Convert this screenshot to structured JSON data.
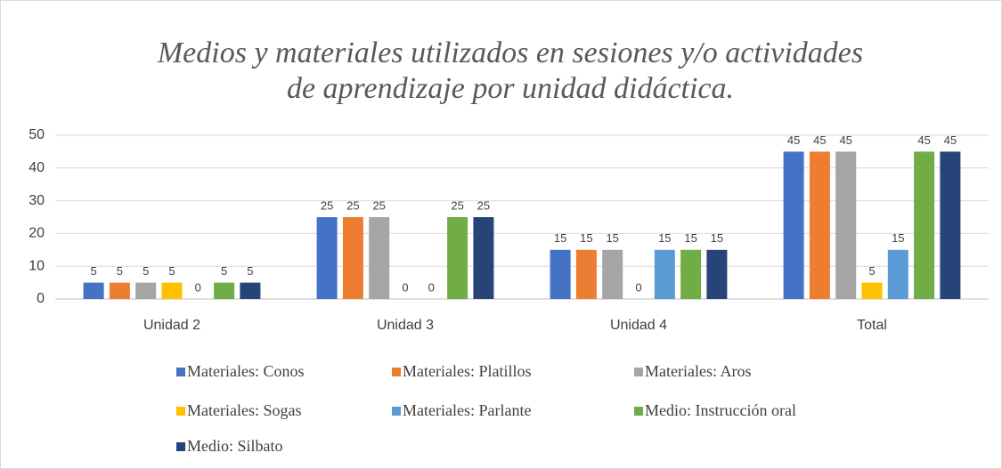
{
  "chart_data": {
    "type": "bar",
    "title": [
      "Medios y materiales utilizados en sesiones y/o actividades",
      "de aprendizaje por unidad didáctica."
    ],
    "categories": [
      "Unidad 2",
      "Unidad 3",
      "Unidad 4",
      "Total"
    ],
    "series": [
      {
        "name": "Materiales: Conos",
        "color": "#4472c4",
        "values": [
          5,
          25,
          15,
          45
        ]
      },
      {
        "name": "Materiales: Platillos",
        "color": "#ed7d31",
        "values": [
          5,
          25,
          15,
          45
        ]
      },
      {
        "name": "Materiales: Aros",
        "color": "#a5a5a5",
        "values": [
          5,
          25,
          15,
          45
        ]
      },
      {
        "name": "Materiales: Sogas",
        "color": "#ffc000",
        "values": [
          5,
          0,
          0,
          5
        ]
      },
      {
        "name": "Materiales: Parlante",
        "color": "#5b9bd5",
        "values": [
          0,
          0,
          15,
          15
        ]
      },
      {
        "name": "Medio:  Instrucción oral",
        "color": "#70ad47",
        "values": [
          5,
          25,
          15,
          45
        ]
      },
      {
        "name": "Medio:  Silbato",
        "color": "#264478",
        "values": [
          5,
          25,
          15,
          45
        ]
      }
    ],
    "ylim": [
      0,
      50
    ],
    "yticks": [
      0,
      10,
      20,
      30,
      40,
      50
    ],
    "grid": true,
    "legend": "bottom"
  }
}
